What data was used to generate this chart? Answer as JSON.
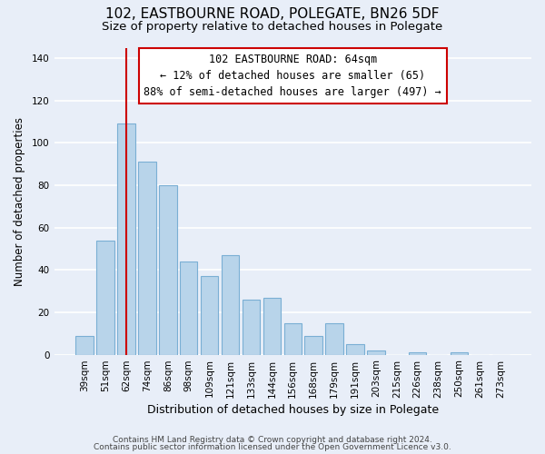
{
  "title": "102, EASTBOURNE ROAD, POLEGATE, BN26 5DF",
  "subtitle": "Size of property relative to detached houses in Polegate",
  "xlabel": "Distribution of detached houses by size in Polegate",
  "ylabel": "Number of detached properties",
  "categories": [
    "39sqm",
    "51sqm",
    "62sqm",
    "74sqm",
    "86sqm",
    "98sqm",
    "109sqm",
    "121sqm",
    "133sqm",
    "144sqm",
    "156sqm",
    "168sqm",
    "179sqm",
    "191sqm",
    "203sqm",
    "215sqm",
    "226sqm",
    "238sqm",
    "250sqm",
    "261sqm",
    "273sqm"
  ],
  "values": [
    9,
    54,
    109,
    91,
    80,
    44,
    37,
    47,
    26,
    27,
    15,
    9,
    15,
    5,
    2,
    0,
    1,
    0,
    1,
    0,
    0
  ],
  "bar_color": "#b8d4ea",
  "bar_edge_color": "#7aafd4",
  "vline_x_idx": 2,
  "vline_color": "#cc0000",
  "annotation_lines": [
    "102 EASTBOURNE ROAD: 64sqm",
    "← 12% of detached houses are smaller (65)",
    "88% of semi-detached houses are larger (497) →"
  ],
  "annotation_box_color": "#ffffff",
  "annotation_box_edgecolor": "#cc0000",
  "ylim": [
    0,
    145
  ],
  "yticks": [
    0,
    20,
    40,
    60,
    80,
    100,
    120,
    140
  ],
  "footer1": "Contains HM Land Registry data © Crown copyright and database right 2024.",
  "footer2": "Contains public sector information licensed under the Open Government Licence v3.0.",
  "bg_color": "#e8eef8",
  "plot_bg_color": "#e8eef8",
  "grid_color": "#ffffff",
  "title_fontsize": 11,
  "subtitle_fontsize": 9.5,
  "xlabel_fontsize": 9,
  "ylabel_fontsize": 8.5,
  "tick_fontsize": 7.5,
  "annotation_fontsize": 8.5,
  "footer_fontsize": 6.5
}
